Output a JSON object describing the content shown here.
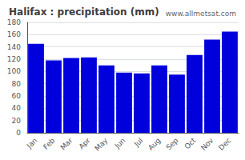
{
  "chart_data": {
    "type": "bar",
    "title": "Halifax : precipitation (mm)",
    "categories": [
      "Jan",
      "Feb",
      "Mar",
      "Apr",
      "May",
      "Jun",
      "Jul",
      "Aug",
      "Sep",
      "Oct",
      "Nov",
      "Dec"
    ],
    "values": [
      145,
      118,
      122,
      123,
      110,
      98,
      97,
      110,
      95,
      127,
      152,
      165
    ],
    "color": "#0000dd",
    "ylim": [
      0,
      180
    ],
    "yticks": [
      0,
      20,
      40,
      60,
      80,
      100,
      120,
      140,
      160,
      180
    ],
    "grid": true,
    "annotations": [
      "www.allmetsat.com"
    ]
  }
}
